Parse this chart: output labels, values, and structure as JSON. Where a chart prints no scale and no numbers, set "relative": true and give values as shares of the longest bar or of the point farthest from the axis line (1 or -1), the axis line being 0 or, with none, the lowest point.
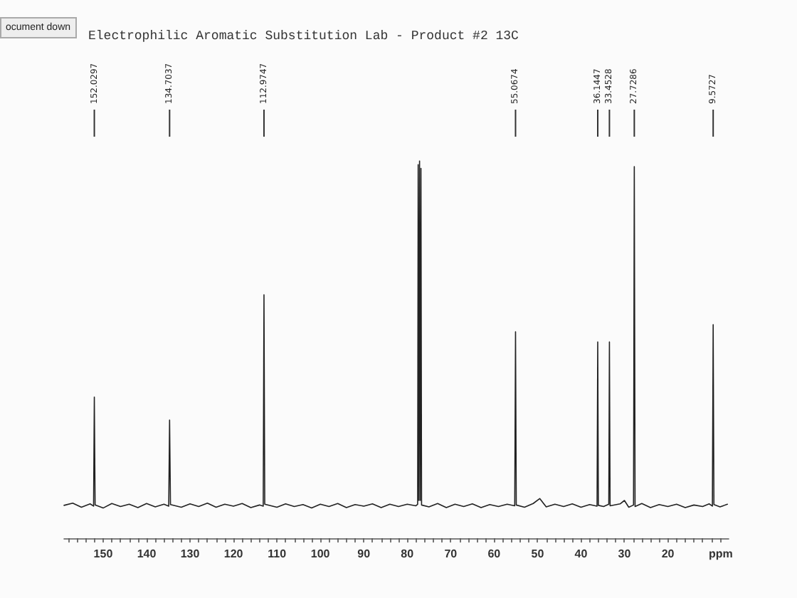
{
  "chart_data": {
    "type": "line",
    "title": "Electrophilic Aromatic Substitution Lab - Product #2 13C",
    "xlabel": "ppm",
    "relative": true,
    "marker": "none",
    "color": "#222222",
    "x": [
      159,
      157,
      155,
      153,
      152.2,
      152.0297,
      151.85,
      150,
      148,
      146,
      144,
      142,
      140,
      138,
      136,
      134.9,
      134.7037,
      134.5,
      132,
      130,
      128,
      126,
      124,
      122,
      120,
      118,
      116,
      114,
      113.15,
      112.9747,
      112.8,
      110,
      108,
      106,
      104,
      102,
      100,
      98,
      96,
      94,
      92,
      90,
      88,
      86,
      84,
      82,
      80,
      78,
      77.6,
      77.48,
      77.32,
      77.16,
      77,
      76.84,
      76.7,
      75,
      73,
      71,
      69,
      67,
      65,
      63,
      61,
      59,
      57,
      55.25,
      55.0674,
      54.9,
      53,
      51,
      49.5,
      48,
      46,
      44,
      42,
      40,
      38,
      36.3,
      36.1447,
      36,
      34.8,
      33.6,
      33.4528,
      33.3,
      31,
      30,
      29,
      27.9,
      27.7286,
      27.55,
      26,
      24,
      22,
      20,
      18,
      16,
      14,
      12,
      10.5,
      9.75,
      9.5727,
      9.4,
      8,
      6.3
    ],
    "values": [
      0.087,
      0.093,
      0.082,
      0.091,
      0.085,
      0.374,
      0.088,
      0.08,
      0.092,
      0.084,
      0.09,
      0.081,
      0.092,
      0.083,
      0.09,
      0.085,
      0.313,
      0.089,
      0.082,
      0.091,
      0.084,
      0.093,
      0.082,
      0.09,
      0.085,
      0.092,
      0.081,
      0.088,
      0.085,
      0.645,
      0.09,
      0.082,
      0.091,
      0.084,
      0.089,
      0.08,
      0.09,
      0.084,
      0.092,
      0.081,
      0.089,
      0.085,
      0.091,
      0.081,
      0.09,
      0.084,
      0.09,
      0.086,
      0.09,
      0.99,
      0.1,
      1,
      0.1,
      0.98,
      0.088,
      0.083,
      0.092,
      0.081,
      0.09,
      0.084,
      0.091,
      0.081,
      0.089,
      0.084,
      0.09,
      0.086,
      0.547,
      0.088,
      0.082,
      0.092,
      0.105,
      0.083,
      0.09,
      0.084,
      0.091,
      0.082,
      0.089,
      0.085,
      0.52,
      0.087,
      0.084,
      0.09,
      0.52,
      0.086,
      0.091,
      0.1,
      0.082,
      0.088,
      0.985,
      0.084,
      0.092,
      0.081,
      0.089,
      0.084,
      0.09,
      0.081,
      0.088,
      0.084,
      0.091,
      0.085,
      0.566,
      0.089,
      0.083,
      0.09
    ],
    "xlim": [
      159,
      6
    ],
    "xticks": [
      {
        "value": 158,
        "label": null
      },
      {
        "value": 156,
        "label": null
      },
      {
        "value": 154,
        "label": null
      },
      {
        "value": 152,
        "label": null
      },
      150,
      {
        "value": 148,
        "label": null
      },
      {
        "value": 146,
        "label": null
      },
      {
        "value": 144,
        "label": null
      },
      {
        "value": 142,
        "label": null
      },
      140,
      {
        "value": 138,
        "label": null
      },
      {
        "value": 136,
        "label": null
      },
      {
        "value": 134,
        "label": null
      },
      {
        "value": 132,
        "label": null
      },
      130,
      {
        "value": 128,
        "label": null
      },
      {
        "value": 126,
        "label": null
      },
      {
        "value": 124,
        "label": null
      },
      {
        "value": 122,
        "label": null
      },
      120,
      {
        "value": 118,
        "label": null
      },
      {
        "value": 116,
        "label": null
      },
      {
        "value": 114,
        "label": null
      },
      {
        "value": 112,
        "label": null
      },
      110,
      {
        "value": 108,
        "label": null
      },
      {
        "value": 106,
        "label": null
      },
      {
        "value": 104,
        "label": null
      },
      {
        "value": 102,
        "label": null
      },
      100,
      {
        "value": 98,
        "label": null
      },
      {
        "value": 96,
        "label": null
      },
      {
        "value": 94,
        "label": null
      },
      {
        "value": 92,
        "label": null
      },
      90,
      {
        "value": 88,
        "label": null
      },
      {
        "value": 86,
        "label": null
      },
      {
        "value": 84,
        "label": null
      },
      {
        "value": 82,
        "label": null
      },
      80,
      {
        "value": 78,
        "label": null
      },
      {
        "value": 76,
        "label": null
      },
      {
        "value": 74,
        "label": null
      },
      {
        "value": 72,
        "label": null
      },
      70,
      {
        "value": 68,
        "label": null
      },
      {
        "value": 66,
        "label": null
      },
      {
        "value": 64,
        "label": null
      },
      {
        "value": 62,
        "label": null
      },
      60,
      {
        "value": 58,
        "label": null
      },
      {
        "value": 56,
        "label": null
      },
      {
        "value": 54,
        "label": null
      },
      {
        "value": 52,
        "label": null
      },
      50,
      {
        "value": 48,
        "label": null
      },
      {
        "value": 46,
        "label": null
      },
      {
        "value": 44,
        "label": null
      },
      {
        "value": 42,
        "label": null
      },
      40,
      {
        "value": 38,
        "label": null
      },
      {
        "value": 36,
        "label": null
      },
      {
        "value": 34,
        "label": null
      },
      {
        "value": 32,
        "label": null
      },
      30,
      {
        "value": 28,
        "label": null
      },
      {
        "value": 26,
        "label": null
      },
      {
        "value": 24,
        "label": null
      },
      {
        "value": 22,
        "label": null
      },
      20,
      {
        "value": 18,
        "label": null
      },
      {
        "value": 16,
        "label": null
      },
      {
        "value": 14,
        "label": null
      },
      {
        "value": 12,
        "label": null
      },
      {
        "value": 10,
        "label": null
      },
      {
        "value": 8,
        "label": null
      }
    ],
    "ref_lines": [
      {
        "axis": "x",
        "value": 152.0297,
        "label": "152.0297"
      },
      {
        "axis": "x",
        "value": 134.7037,
        "label": "134.7037"
      },
      {
        "axis": "x",
        "value": 112.9747,
        "label": "112.9747"
      },
      {
        "axis": "x",
        "value": 55.0674,
        "label": "55.0674"
      },
      {
        "axis": "x",
        "value": 36.1447,
        "label": "36.1447"
      },
      {
        "axis": "x",
        "value": 33.4528,
        "label": "33.4528"
      },
      {
        "axis": "x",
        "value": 27.7286,
        "label": "27.7286"
      },
      {
        "axis": "x",
        "value": 9.5727,
        "label": "9.5727"
      }
    ],
    "annotations": [
      "ocument down"
    ]
  }
}
